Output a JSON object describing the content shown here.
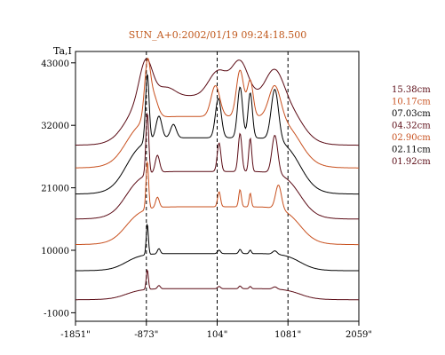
{
  "chart_data": {
    "type": "line",
    "title": "SUN_A+0:2002/01/19 09:24:18.500",
    "ylabel": "Ta,I",
    "xlabel": "",
    "x_ticks": [
      "-1851\"",
      "-873\"",
      "104\"",
      "1081\"",
      "2059\""
    ],
    "x_tick_values": [
      -1851,
      -873,
      104,
      1081,
      2059
    ],
    "y_ticks": [
      "43000",
      "32000",
      "21000",
      "10000",
      "-1000"
    ],
    "y_tick_values": [
      43000,
      32000,
      21000,
      10000,
      -1000
    ],
    "xlim": [
      -1851,
      2059
    ],
    "ylim": [
      -2500,
      45000
    ],
    "grid": false,
    "legend_position": "right",
    "vlines": [
      -873,
      104,
      1081
    ],
    "vline_style": "dashed",
    "colors": {
      "dark": "#5a0a14",
      "orange": "#c8501e",
      "black": "#000000"
    },
    "series": [
      {
        "name": "15.38cm",
        "color": "#5a0a14",
        "baseline": 28500,
        "peak_top": 43700,
        "profile": "broad"
      },
      {
        "name": "10.17cm",
        "color": "#c8501e",
        "baseline": 24500,
        "peak_top": 43800,
        "profile": "broad_spiky"
      },
      {
        "name": "07.03cm",
        "color": "#000000",
        "baseline": 19900,
        "peak_top": 40900,
        "profile": "mid"
      },
      {
        "name": "04.32cm",
        "color": "#5a0a14",
        "baseline": 15500,
        "peak_top": 34000,
        "profile": "mid_spiky"
      },
      {
        "name": "02.90cm",
        "color": "#c8501e",
        "baseline": 11000,
        "peak_top": 25500,
        "profile": "low"
      },
      {
        "name": "02.11cm",
        "color": "#000000",
        "baseline": 6400,
        "peak_top": 14500,
        "profile": "flat"
      },
      {
        "name": "01.92cm",
        "color": "#5a0a14",
        "baseline": 1300,
        "peak_top": 6500,
        "profile": "flat"
      }
    ]
  }
}
